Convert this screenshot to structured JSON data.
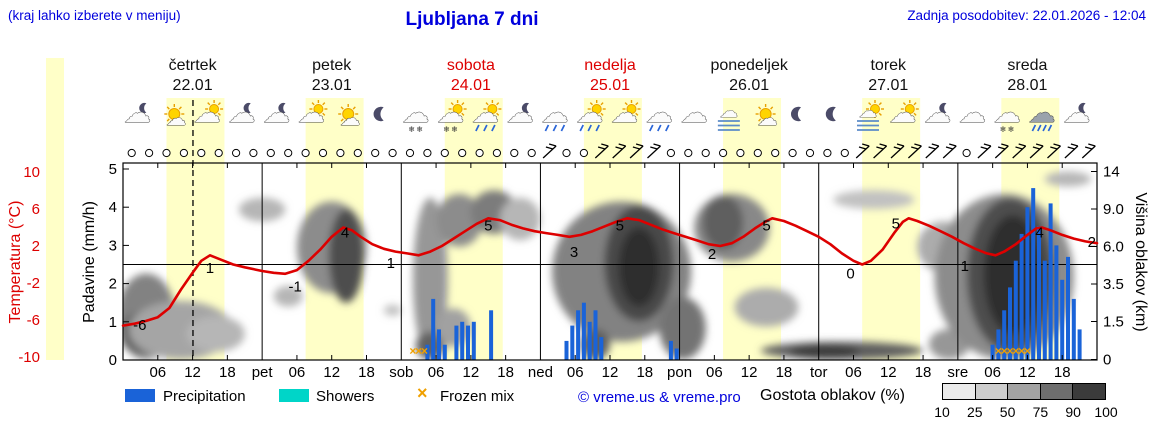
{
  "header": {
    "note": "(kraj lahko izberete v meniju)",
    "title": "Ljubljana 7 dni",
    "updated": "Zadnja posodobitev: 22.01.2026 - 12:04"
  },
  "colors": {
    "red": "#dd0000",
    "text_blue": "#0000dd",
    "daylight": "#ffffc8"
  },
  "axes": {
    "temp_label": "Temperatura (°C)",
    "precip_label": "Padavine (mm/h)",
    "cloud_label": "Višina oblakov (km)",
    "temp_ticks": [
      10,
      6,
      2,
      -2,
      -6,
      -10
    ],
    "precip_ticks": [
      5,
      4,
      3,
      2,
      1,
      0
    ],
    "cloud_ticks": [
      "14",
      "9.0",
      "6.0",
      "3.5",
      "1.5",
      "0"
    ],
    "cloud_tick_km": [
      14,
      9,
      6,
      3.5,
      1.5,
      0
    ]
  },
  "legend": {
    "precipitation": "Precipitation",
    "showers": "Showers",
    "frozen_mix": "Frozen mix",
    "frozen_glyph": "×",
    "copyright": "© vreme.us & vreme.pro",
    "cloud_density": "Gostota oblakov (%)",
    "scale_labels": [
      "10",
      "25",
      "50",
      "75",
      "90",
      "100"
    ],
    "scale_grays": [
      "#ebebeb",
      "#cdcdcd",
      "#a3a3a3",
      "#6e6e6e",
      "#3b3b3b"
    ],
    "precip_color": "#1a63d8",
    "showers_color": "#00d5c8",
    "frozen_color": "#f0a000"
  },
  "chart_data": {
    "type": "meteogram",
    "hours_total": 168,
    "now_hour": 12.07,
    "daylight_color": "#ffffc8",
    "daylight_hours": [
      7.5,
      17.5
    ],
    "days": [
      {
        "name": "četrtek",
        "date": "22.01",
        "weekend": false
      },
      {
        "name": "petek",
        "date": "23.01",
        "weekend": false
      },
      {
        "name": "sobota",
        "date": "24.01",
        "weekend": true
      },
      {
        "name": "nedelja",
        "date": "25.01",
        "weekend": true
      },
      {
        "name": "ponedeljek",
        "date": "26.01",
        "weekend": false
      },
      {
        "name": "torek",
        "date": "27.01",
        "weekend": false
      },
      {
        "name": "sreda",
        "date": "28.01",
        "weekend": false
      }
    ],
    "x_hour_labels": [
      "06",
      "12",
      "18"
    ],
    "day_abbrevs": [
      "",
      "pet",
      "sob",
      "ned",
      "pon",
      "tor",
      "sre"
    ],
    "temperature": {
      "unit": "°C",
      "points": [
        [
          0,
          -6.6
        ],
        [
          2,
          -6.4
        ],
        [
          4,
          -6.1
        ],
        [
          6,
          -5.7
        ],
        [
          8,
          -4.7
        ],
        [
          10,
          -2.7
        ],
        [
          12,
          -0.9
        ],
        [
          13.5,
          0.4
        ],
        [
          15,
          1
        ],
        [
          17,
          0.5
        ],
        [
          19,
          0
        ],
        [
          21,
          -0.3
        ],
        [
          24,
          -0.7
        ],
        [
          26,
          -0.9
        ],
        [
          28,
          -1
        ],
        [
          30,
          -0.6
        ],
        [
          32,
          0.4
        ],
        [
          34,
          1.6
        ],
        [
          36,
          3
        ],
        [
          38,
          4
        ],
        [
          39.5,
          3.7
        ],
        [
          41,
          3
        ],
        [
          43,
          2.2
        ],
        [
          45,
          1.7
        ],
        [
          47,
          1.4
        ],
        [
          49,
          1.2
        ],
        [
          51,
          1
        ],
        [
          53,
          1.4
        ],
        [
          55,
          2
        ],
        [
          57,
          2.8
        ],
        [
          59,
          3.6
        ],
        [
          61,
          4.4
        ],
        [
          63,
          5
        ],
        [
          65,
          4.8
        ],
        [
          67,
          4.3
        ],
        [
          69,
          3.9
        ],
        [
          71,
          3.6
        ],
        [
          73,
          3.4
        ],
        [
          75,
          3.2
        ],
        [
          77,
          3
        ],
        [
          79,
          3.2
        ],
        [
          81,
          3.6
        ],
        [
          83,
          4.1
        ],
        [
          85,
          4.6
        ],
        [
          87,
          5
        ],
        [
          89,
          4.8
        ],
        [
          91,
          4.3
        ],
        [
          93,
          3.8
        ],
        [
          95,
          3.4
        ],
        [
          97,
          3
        ],
        [
          99,
          2.6
        ],
        [
          101,
          2.2
        ],
        [
          103,
          2
        ],
        [
          105,
          2.3
        ],
        [
          107,
          3
        ],
        [
          109,
          3.9
        ],
        [
          111,
          4.7
        ],
        [
          112,
          5
        ],
        [
          114,
          4.7
        ],
        [
          116,
          4.2
        ],
        [
          118,
          3.6
        ],
        [
          120,
          3
        ],
        [
          122,
          2.2
        ],
        [
          124,
          1.2
        ],
        [
          126,
          0.4
        ],
        [
          127.5,
          0
        ],
        [
          129,
          0.4
        ],
        [
          131,
          1.6
        ],
        [
          133,
          3.4
        ],
        [
          134.5,
          4.6
        ],
        [
          135.5,
          5
        ],
        [
          137,
          4.7
        ],
        [
          139,
          4.2
        ],
        [
          141,
          3.6
        ],
        [
          143,
          3
        ],
        [
          145,
          2.3
        ],
        [
          147,
          1.7
        ],
        [
          149,
          1.2
        ],
        [
          150.5,
          1
        ],
        [
          152,
          1.4
        ],
        [
          154,
          2.2
        ],
        [
          156,
          3.2
        ],
        [
          157.5,
          3.9
        ],
        [
          158.5,
          4
        ],
        [
          160,
          3.7
        ],
        [
          162,
          3.2
        ],
        [
          164,
          2.8
        ],
        [
          166,
          2.5
        ],
        [
          168,
          2.3
        ]
      ]
    },
    "temp_point_labels": [
      {
        "h": 2.9,
        "text": "-6",
        "t": -7.1
      },
      {
        "h": 15,
        "text": "1",
        "t": -0.9
      },
      {
        "h": 29.7,
        "text": "-1",
        "t": -2.9
      },
      {
        "h": 38.3,
        "text": "4",
        "t": 2.9
      },
      {
        "h": 46.2,
        "text": "1",
        "t": -0.4
      },
      {
        "h": 63,
        "text": "5",
        "t": 3.7
      },
      {
        "h": 77.8,
        "text": "3",
        "t": 0.8
      },
      {
        "h": 85.7,
        "text": "5",
        "t": 3.7
      },
      {
        "h": 101.6,
        "text": "2",
        "t": 0.6
      },
      {
        "h": 111,
        "text": "5",
        "t": 3.7
      },
      {
        "h": 125.5,
        "text": "0",
        "t": -1.5
      },
      {
        "h": 133.3,
        "text": "5",
        "t": 3.9
      },
      {
        "h": 145.2,
        "text": "1",
        "t": -0.7
      },
      {
        "h": 158.1,
        "text": "4",
        "t": 2.9
      },
      {
        "h": 167.1,
        "text": "2",
        "t": 1.9
      }
    ],
    "precipitation_bars": {
      "unit": "mm/h",
      "points": [
        [
          52.5,
          0.4
        ],
        [
          53.5,
          1.6
        ],
        [
          54.5,
          0.8
        ],
        [
          55.5,
          0.4
        ],
        [
          57.5,
          0.9
        ],
        [
          58.5,
          1.0
        ],
        [
          59.5,
          0.9
        ],
        [
          60.5,
          1.0
        ],
        [
          63.5,
          1.3
        ],
        [
          76.5,
          0.5
        ],
        [
          77.5,
          0.9
        ],
        [
          78.5,
          1.3
        ],
        [
          79.5,
          1.5
        ],
        [
          80.5,
          1.0
        ],
        [
          81.5,
          1.3
        ],
        [
          82.5,
          0.6
        ],
        [
          94.5,
          0.5
        ],
        [
          95.5,
          0.3
        ],
        [
          150,
          0.4
        ],
        [
          151,
          0.8
        ],
        [
          152,
          1.3
        ],
        [
          153,
          1.9
        ],
        [
          154,
          2.6
        ],
        [
          155,
          3.3
        ],
        [
          156,
          4.0
        ],
        [
          157,
          4.5
        ],
        [
          158,
          3.5
        ],
        [
          159,
          2.6
        ],
        [
          160,
          4.1
        ],
        [
          161,
          3.0
        ],
        [
          162,
          2.1
        ],
        [
          163,
          2.7
        ],
        [
          164,
          1.6
        ],
        [
          165,
          0.8
        ]
      ]
    },
    "frozen_mix_hours": [
      50,
      51,
      52,
      151,
      152,
      153,
      154,
      155,
      156
    ],
    "cloud_regions": [
      {
        "h": 4,
        "hw": 5,
        "km0": 0,
        "km1": 4.2,
        "d": 55
      },
      {
        "h": 3,
        "hw": 3.5,
        "km0": 0.2,
        "km1": 2,
        "d": 72
      },
      {
        "h": 10,
        "hw": 9,
        "km0": 0,
        "km1": 2.6,
        "d": 38
      },
      {
        "h": 16,
        "hw": 5,
        "km0": 0.3,
        "km1": 1.8,
        "d": 30
      },
      {
        "h": 24,
        "hw": 4,
        "km0": 8,
        "km1": 10.5,
        "d": 30
      },
      {
        "h": 28.5,
        "hw": 2.5,
        "km0": 2.3,
        "km1": 3.4,
        "d": 30
      },
      {
        "h": 36,
        "hw": 6,
        "km0": 3,
        "km1": 10,
        "d": 50
      },
      {
        "h": 38.5,
        "hw": 3,
        "km0": 2.5,
        "km1": 9,
        "d": 80
      },
      {
        "h": 46.5,
        "hw": 1.5,
        "km0": 1.8,
        "km1": 2.4,
        "d": 25
      },
      {
        "h": 53,
        "hw": 3,
        "km0": 0,
        "km1": 10.5,
        "d": 45
      },
      {
        "h": 53,
        "hw": 2.5,
        "km0": 0,
        "km1": 1.1,
        "d": 70
      },
      {
        "h": 57,
        "hw": 3,
        "km0": 0.5,
        "km1": 2.2,
        "d": 40
      },
      {
        "h": 58,
        "hw": 4,
        "km0": 6,
        "km1": 11,
        "d": 50
      },
      {
        "h": 64,
        "hw": 4,
        "km0": 7,
        "km1": 11.5,
        "d": 58
      },
      {
        "h": 68.5,
        "hw": 3.5,
        "km0": 6.5,
        "km1": 10.5,
        "d": 30
      },
      {
        "h": 86,
        "hw": 12,
        "km0": 0.7,
        "km1": 10,
        "d": 55
      },
      {
        "h": 89,
        "hw": 6,
        "km0": 1.5,
        "km1": 9.5,
        "d": 82
      },
      {
        "h": 89,
        "hw": 3.5,
        "km0": 2.3,
        "km1": 7.5,
        "d": 95
      },
      {
        "h": 81.5,
        "hw": 2.5,
        "km0": 0,
        "km1": 1.2,
        "d": 72
      },
      {
        "h": 96.5,
        "hw": 4,
        "km0": 0,
        "km1": 2.8,
        "d": 62
      },
      {
        "h": 105,
        "hw": 6.5,
        "km0": 5,
        "km1": 11,
        "d": 52
      },
      {
        "h": 103.5,
        "hw": 3.5,
        "km0": 5.8,
        "km1": 10.8,
        "d": 72
      },
      {
        "h": 111,
        "hw": 5.5,
        "km0": 1.3,
        "km1": 3.3,
        "d": 35
      },
      {
        "h": 124,
        "hw": 14,
        "km0": 0,
        "km1": 0.7,
        "d": 72
      },
      {
        "h": 121,
        "hw": 6,
        "km0": 0,
        "km1": 0.6,
        "d": 88
      },
      {
        "h": 129.5,
        "hw": 7,
        "km0": 9,
        "km1": 11.5,
        "d": 25
      },
      {
        "h": 141.5,
        "hw": 4.5,
        "km0": 4.3,
        "km1": 8,
        "d": 35
      },
      {
        "h": 142.5,
        "hw": 3.5,
        "km0": 0,
        "km1": 1.2,
        "d": 45
      },
      {
        "h": 152,
        "hw": 12,
        "km0": 0,
        "km1": 11,
        "d": 50
      },
      {
        "h": 153,
        "hw": 7.5,
        "km0": 0.3,
        "km1": 10.5,
        "d": 80
      },
      {
        "h": 153.5,
        "hw": 5,
        "km0": 1,
        "km1": 8.5,
        "d": 95
      },
      {
        "h": 163,
        "hw": 4,
        "km0": 12,
        "km1": 14,
        "d": 30
      }
    ],
    "weather_icons": [
      "cloud-moon",
      "sun-cloud",
      "cloud-sun",
      "cloud-moon",
      "cloud-moon",
      "cloud-sun",
      "sun-cloud",
      "moon",
      "snow",
      "snow-sun",
      "rain-sun",
      "cloud-moon",
      "rain",
      "rain-sun",
      "cloud-sun",
      "rain",
      "cloud",
      "fog",
      "sun-cloud",
      "moon",
      "moon",
      "fog-sun",
      "cloud-sun",
      "cloud-moon",
      "cloud",
      "snow",
      "heavy-rain",
      "cloud-moon"
    ],
    "wind": {
      "start_h": 1.5,
      "step_h": 3,
      "symbols": [
        "o",
        "o",
        "o",
        "o",
        "o",
        "o",
        "o",
        "o",
        "o",
        "o",
        "o",
        "o",
        "o",
        "o",
        "o",
        "o",
        "o",
        "o",
        "o",
        "o",
        "o",
        "o",
        "o",
        "o",
        "b",
        "o",
        "o",
        "b",
        "b",
        "b",
        "b",
        "o",
        "o",
        "o",
        "o",
        "o",
        "o",
        "o",
        "o",
        "o",
        "o",
        "o",
        "b",
        "b",
        "b",
        "b",
        "b",
        "b",
        "o",
        "b",
        "b",
        "b",
        "b",
        "b",
        "b",
        "b"
      ]
    }
  }
}
